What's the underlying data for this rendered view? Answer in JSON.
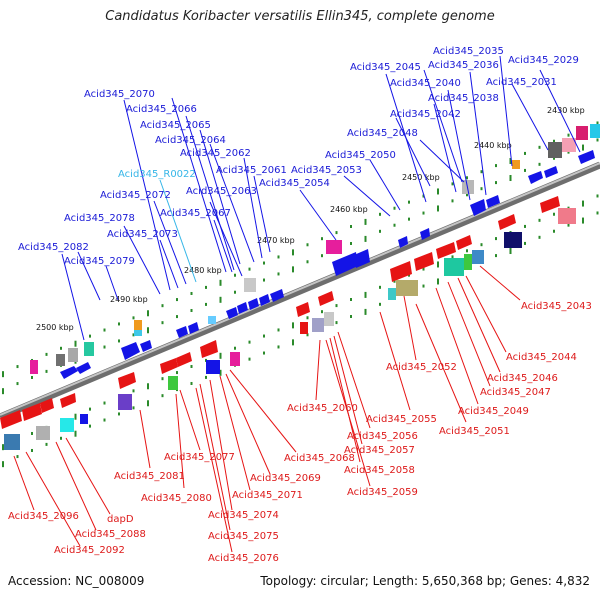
{
  "title": "Candidatus Koribacter versatilis Ellin345, complete genome",
  "accession": "Accession: NC_008009",
  "stats": "Topology: circular; Length: 5,650,368 bp; Genes: 4,832",
  "kbp_ticks": [
    "2500 kbp",
    "2490 kbp",
    "2480 kbp",
    "2470 kbp",
    "2460 kbp",
    "2450 kbp",
    "2440 kbp",
    "2430 kbp"
  ],
  "colors": {
    "forward_gene": "#1414e6",
    "reverse_gene": "#e61414",
    "rna_label": "#36b6e8",
    "backbone": "#888888",
    "tick_dot": "#2a8a2a"
  },
  "top_labels": [
    {
      "text": "Acid345_2035",
      "rna": false
    },
    {
      "text": "Acid345_2029",
      "rna": false
    },
    {
      "text": "Acid345_2045",
      "rna": false
    },
    {
      "text": "Acid345_2036",
      "rna": false
    },
    {
      "text": "Acid345_2040",
      "rna": false
    },
    {
      "text": "Acid345_2031",
      "rna": false
    },
    {
      "text": "Acid345_2038",
      "rna": false
    },
    {
      "text": "Acid345_2070",
      "rna": false
    },
    {
      "text": "Acid345_2066",
      "rna": false
    },
    {
      "text": "Acid345_2042",
      "rna": false
    },
    {
      "text": "Acid345_2065",
      "rna": false
    },
    {
      "text": "Acid345_2048",
      "rna": false
    },
    {
      "text": "Acid345_2064",
      "rna": false
    },
    {
      "text": "Acid345_2062",
      "rna": false
    },
    {
      "text": "Acid345_2050",
      "rna": false
    },
    {
      "text": "Acid345_2061",
      "rna": false
    },
    {
      "text": "Acid345_2053",
      "rna": false
    },
    {
      "text": "Acid345_R0022",
      "rna": true
    },
    {
      "text": "Acid345_2054",
      "rna": false
    },
    {
      "text": "Acid345_2063",
      "rna": false
    },
    {
      "text": "Acid345_2072",
      "rna": false
    },
    {
      "text": "Acid345_2067",
      "rna": false
    },
    {
      "text": "Acid345_2078",
      "rna": false
    },
    {
      "text": "Acid345_2073",
      "rna": false
    },
    {
      "text": "Acid345_2082",
      "rna": false
    },
    {
      "text": "Acid345_2079",
      "rna": false
    }
  ],
  "bottom_labels": [
    "Acid345_2043",
    "Acid345_2044",
    "Acid345_2052",
    "Acid345_2046",
    "Acid345_2047",
    "Acid345_2049",
    "Acid345_2060",
    "Acid345_2055",
    "Acid345_2051",
    "Acid345_2056",
    "Acid345_2057",
    "Acid345_2077",
    "Acid345_2068",
    "Acid345_2058",
    "Acid345_2081",
    "Acid345_2069",
    "Acid345_2059",
    "Acid345_2080",
    "Acid345_2071",
    "Acid345_2096",
    "Acid345_2074",
    "dapD",
    "Acid345_2088",
    "Acid345_2075",
    "Acid345_2092",
    "Acid345_2076"
  ]
}
